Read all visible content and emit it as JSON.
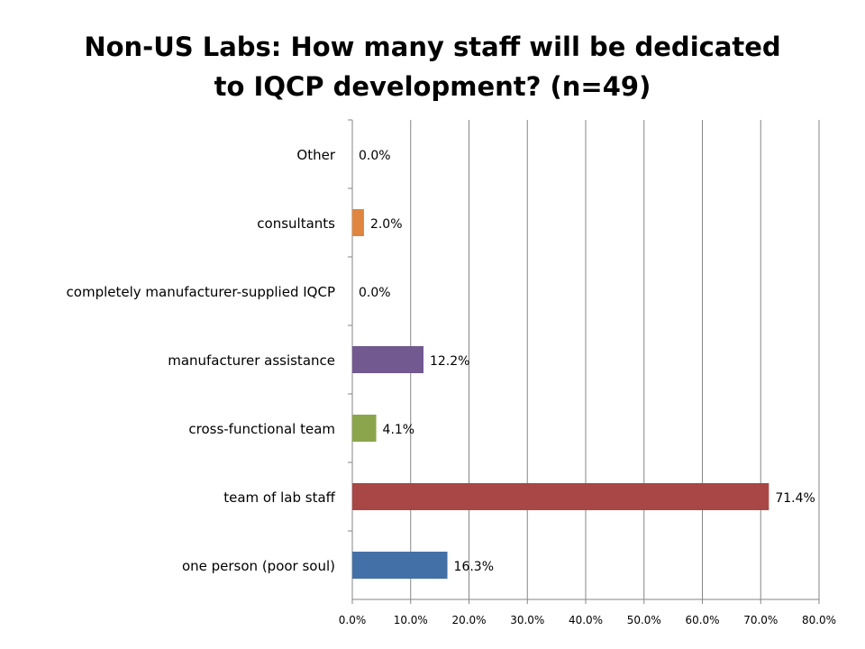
{
  "chart_data": {
    "type": "bar",
    "orientation": "horizontal",
    "title_lines": [
      "Non-US Labs: How many staff will be dedicated",
      "to IQCP development? (n=49)"
    ],
    "categories": [
      "Other",
      "consultants",
      "completely manufacturer-supplied IQCP",
      "manufacturer assistance",
      "cross-functional team",
      "team of lab staff",
      "one person (poor soul)"
    ],
    "values": [
      0.0,
      2.0,
      0.0,
      12.2,
      4.1,
      71.4,
      16.3
    ],
    "data_labels": [
      "0.0%",
      "2.0%",
      "0.0%",
      "12.2%",
      "4.1%",
      "71.4%",
      "16.3%"
    ],
    "colors": [
      "#4f81bd",
      "#e0853f",
      "#4f81bd",
      "#725990",
      "#8ba54c",
      "#a84745",
      "#4470a8"
    ],
    "xlim": [
      0,
      80
    ],
    "xticks": [
      "0.0%",
      "10.0%",
      "20.0%",
      "30.0%",
      "40.0%",
      "50.0%",
      "60.0%",
      "70.0%",
      "80.0%"
    ],
    "grid": "vertical",
    "legend": "none"
  }
}
